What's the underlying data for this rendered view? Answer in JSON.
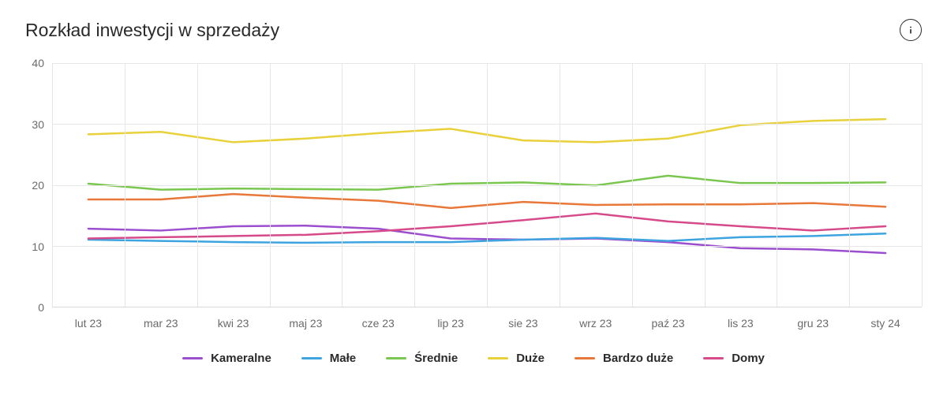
{
  "title": "Rozkład inwestycji w sprzedaży",
  "chart": {
    "type": "line",
    "ylim": [
      0,
      40
    ],
    "ytick_step": 10,
    "yticks": [
      0,
      10,
      20,
      30,
      40
    ],
    "categories": [
      "lut 23",
      "mar 23",
      "kwi 23",
      "maj 23",
      "cze 23",
      "lip 23",
      "sie 23",
      "wrz 23",
      "paź 23",
      "lis 23",
      "gru 23",
      "sty 24"
    ],
    "grid_color": "#e6e6e6",
    "background_color": "#ffffff",
    "axis_label_color": "#6a6a6a",
    "axis_label_fontsize": 14,
    "line_width": 2.5,
    "series": [
      {
        "name": "Kameralne",
        "color": "#9b4fcf",
        "values": [
          12.8,
          12.5,
          13.2,
          13.3,
          12.8,
          11.2,
          11.0,
          11.2,
          10.6,
          9.6,
          9.4,
          8.8
        ]
      },
      {
        "name": "Małe",
        "color": "#3ea4e0",
        "values": [
          11.0,
          10.8,
          10.6,
          10.5,
          10.6,
          10.6,
          11.0,
          11.3,
          10.8,
          11.4,
          11.6,
          12.0
        ]
      },
      {
        "name": "Średnie",
        "color": "#7ac74f",
        "values": [
          20.2,
          19.2,
          19.4,
          19.3,
          19.2,
          20.2,
          20.4,
          19.9,
          21.5,
          20.3,
          20.3,
          20.4
        ]
      },
      {
        "name": "Duże",
        "color": "#e8d13a",
        "values": [
          28.3,
          28.7,
          27.0,
          27.6,
          28.5,
          29.2,
          27.3,
          27.0,
          27.6,
          29.8,
          30.5,
          30.8
        ]
      },
      {
        "name": "Bardzo duże",
        "color": "#e8773a",
        "values": [
          17.6,
          17.6,
          18.5,
          17.9,
          17.4,
          16.2,
          17.2,
          16.7,
          16.8,
          16.8,
          17.0,
          16.4
        ]
      },
      {
        "name": "Domy",
        "color": "#d64a8a",
        "values": [
          11.2,
          11.4,
          11.6,
          11.8,
          12.4,
          13.2,
          14.2,
          15.3,
          14.0,
          13.2,
          12.5,
          13.2
        ]
      }
    ],
    "legend_fontsize": 15,
    "legend_fontweight": 700
  }
}
